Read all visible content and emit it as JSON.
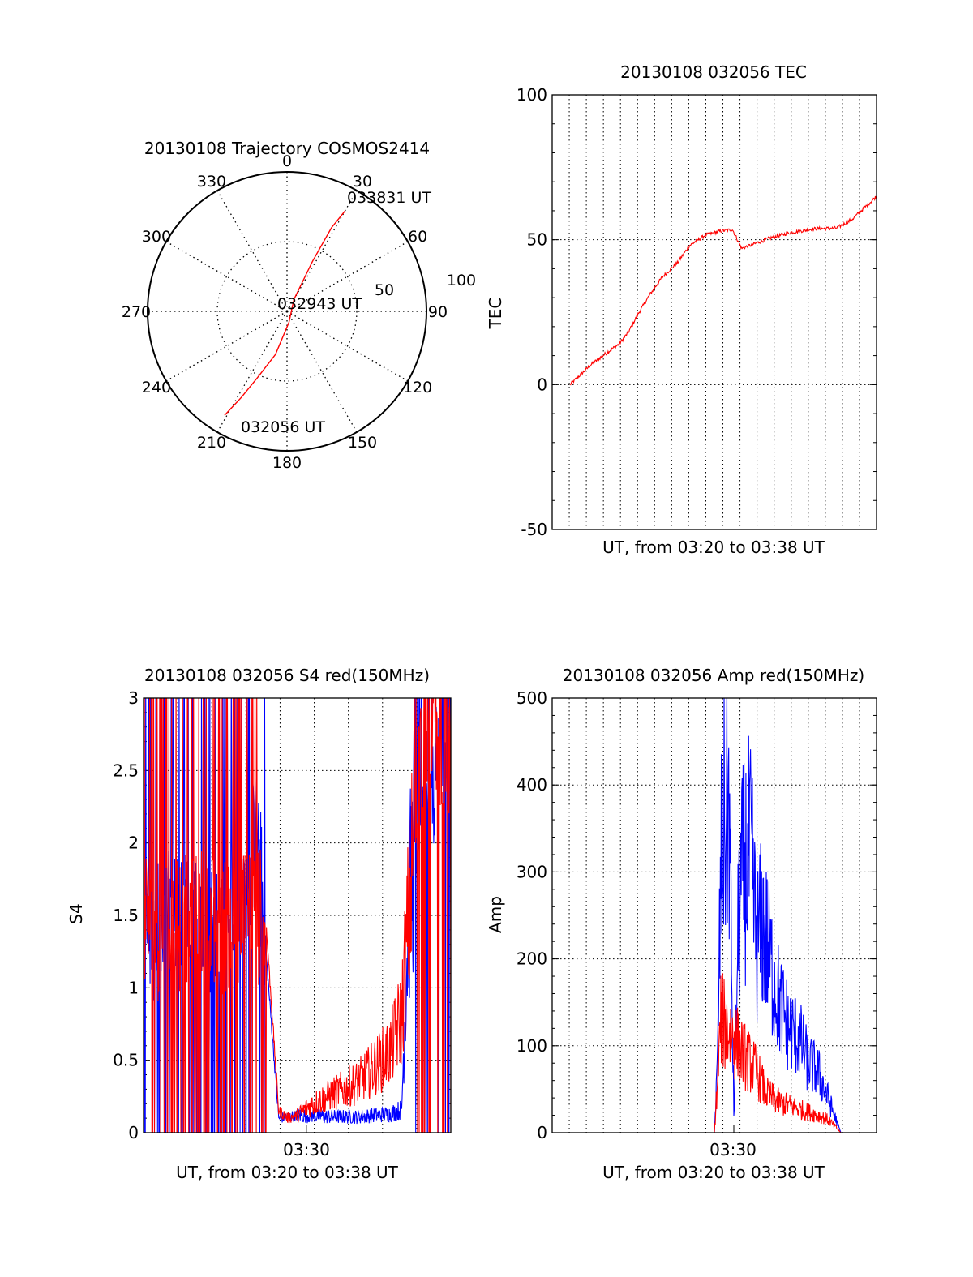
{
  "colors": {
    "red": "#ff0000",
    "blue": "#0000ff",
    "axis": "#000000",
    "grid": "#000000"
  },
  "chart_data": [
    {
      "type": "polar",
      "title": "20130108 Trajectory COSMOS2414",
      "azimuth_labels": [
        "0",
        "30",
        "60",
        "90",
        "120",
        "150",
        "180",
        "210",
        "240",
        "270",
        "300",
        "330"
      ],
      "radial_tick_labels": [
        "50",
        "100"
      ],
      "radial_max": 100,
      "grid": true,
      "annotations": [
        "033831 UT",
        "032943 UT",
        "032056 UT"
      ],
      "series": [
        {
          "color": "red",
          "points_az_zen": [
            [
              211,
              87
            ],
            [
              208,
              70
            ],
            [
              204,
              52
            ],
            [
              195,
              32
            ],
            [
              170,
              8
            ],
            [
              30,
              10
            ],
            [
              27,
              40
            ],
            [
              28,
              68
            ],
            [
              30,
              83
            ]
          ]
        }
      ]
    },
    {
      "type": "line",
      "title": "20130108 032056 TEC",
      "xlabel": "UT, from 03:20 to 03:38 UT",
      "ylabel": "TEC",
      "ylim": [
        -50,
        100
      ],
      "yticks": [
        "-50",
        "0",
        "50",
        "100"
      ],
      "xlim": [
        0,
        1
      ],
      "grid": true,
      "series": [
        {
          "color": "red",
          "x": [
            0.0,
            0.03,
            0.07,
            0.12,
            0.16,
            0.19,
            0.22,
            0.26,
            0.3,
            0.35,
            0.39,
            0.44,
            0.49,
            0.53,
            0.56,
            0.6,
            0.65,
            0.72,
            0.8,
            0.87,
            0.92,
            0.96,
            1.0
          ],
          "y": [
            0.0,
            3.0,
            7.0,
            11.0,
            14.0,
            18.0,
            24.0,
            31.0,
            37.0,
            42.0,
            48.0,
            51.5,
            53.0,
            53.5,
            47.0,
            48.5,
            50.5,
            52.5,
            53.8,
            54.0,
            57.0,
            61.0,
            65.0
          ]
        }
      ]
    },
    {
      "type": "line",
      "title": "20130108 032056 S4 red(150MHz)",
      "xlabel": "UT, from 03:20 to 03:38 UT",
      "ylabel": "S4",
      "ylim": [
        0,
        3
      ],
      "yticks": [
        "0",
        "0.5",
        "1",
        "1.5",
        "2",
        "2.5",
        "3"
      ],
      "xtick_label": "03:30",
      "xlim": [
        0,
        1
      ],
      "grid": true,
      "series": [
        {
          "color": "blue",
          "x": [
            0.0,
            0.03,
            0.06,
            0.1,
            0.14,
            0.18,
            0.22,
            0.26,
            0.3,
            0.34,
            0.37,
            0.4,
            0.44,
            0.47,
            0.5,
            0.55,
            0.6,
            0.65,
            0.7,
            0.75,
            0.8,
            0.84,
            0.86,
            0.88,
            0.9,
            0.93,
            0.96,
            1.0
          ],
          "y": [
            2.0,
            1.3,
            1.4,
            1.5,
            1.4,
            1.5,
            1.4,
            1.4,
            1.6,
            1.8,
            2.1,
            1.2,
            0.1,
            0.11,
            0.12,
            0.12,
            0.11,
            0.11,
            0.11,
            0.12,
            0.13,
            0.16,
            1.4,
            2.0,
            2.5,
            2.4,
            2.6,
            2.1
          ]
        },
        {
          "color": "red",
          "x": [
            0.0,
            0.05,
            0.1,
            0.15,
            0.2,
            0.25,
            0.3,
            0.35,
            0.4,
            0.44,
            0.47,
            0.5,
            0.55,
            0.6,
            0.65,
            0.7,
            0.75,
            0.8,
            0.84,
            0.86,
            0.88,
            0.9,
            0.93,
            0.96,
            1.0
          ],
          "y": [
            1.5,
            1.4,
            1.5,
            1.4,
            1.5,
            1.4,
            1.5,
            1.6,
            1.4,
            0.15,
            0.1,
            0.12,
            0.2,
            0.25,
            0.3,
            0.35,
            0.45,
            0.55,
            0.8,
            1.4,
            2.0,
            2.6,
            2.9,
            2.8,
            2.5
          ]
        }
      ]
    },
    {
      "type": "line",
      "title": "20130108 032056 Amp red(150MHz)",
      "xlabel": "UT, from 03:20 to 03:38 UT",
      "ylabel": "Amp",
      "ylim": [
        0,
        500
      ],
      "yticks": [
        "0",
        "100",
        "200",
        "300",
        "400",
        "500"
      ],
      "xtick_label": "03:30",
      "xlim": [
        0,
        1
      ],
      "grid": true,
      "series": [
        {
          "color": "blue",
          "x": [
            0.0,
            0.5,
            0.51,
            0.52,
            0.53,
            0.545,
            0.56,
            0.575,
            0.59,
            0.61,
            0.63,
            0.65,
            0.67,
            0.7,
            0.73,
            0.76,
            0.79,
            0.82,
            0.85,
            0.87,
            0.89,
            1.0
          ],
          "y": [
            0,
            0,
            80,
            300,
            350,
            380,
            20,
            250,
            300,
            320,
            220,
            240,
            200,
            150,
            120,
            110,
            80,
            70,
            40,
            20,
            0,
            0
          ]
        },
        {
          "color": "red",
          "x": [
            0.0,
            0.5,
            0.51,
            0.52,
            0.54,
            0.56,
            0.58,
            0.6,
            0.63,
            0.66,
            0.7,
            0.74,
            0.78,
            0.82,
            0.85,
            0.87,
            0.89,
            1.0
          ],
          "y": [
            0,
            0,
            60,
            130,
            120,
            110,
            95,
            85,
            70,
            45,
            35,
            30,
            25,
            20,
            15,
            8,
            0,
            0
          ]
        }
      ]
    }
  ]
}
